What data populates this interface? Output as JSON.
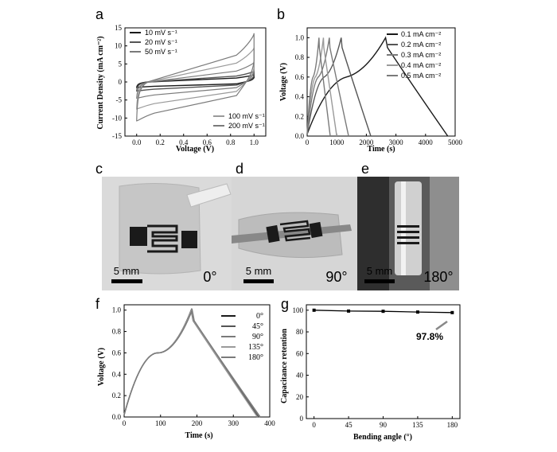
{
  "panels": {
    "a": "a",
    "b": "b",
    "c": "c",
    "d": "d",
    "e": "e",
    "f": "f",
    "g": "g"
  },
  "photos": {
    "c": {
      "scale": "5 mm",
      "angle": "0°"
    },
    "d": {
      "scale": "5 mm",
      "angle": "90°"
    },
    "e": {
      "scale": "5 mm",
      "angle": "180°"
    }
  },
  "colors": {
    "dark": "#1a1a1a",
    "mid": "#555555",
    "grey": "#7a7a7a",
    "light": "#9a9a9a",
    "photo_bg": "#dcdcdc"
  },
  "chart_data": [
    {
      "id": "a",
      "type": "line",
      "xlabel": "Voltage (V)",
      "ylabel": "Current Density (mA cm⁻²)",
      "xlim": [
        -0.1,
        1.1
      ],
      "ylim": [
        -15,
        15
      ],
      "xticks": [
        "0.0",
        "0.2",
        "0.4",
        "0.6",
        "0.8",
        "1.0"
      ],
      "yticks": [
        "-15",
        "-10",
        "-5",
        "0",
        "5",
        "10",
        "15"
      ],
      "legend": [
        "10 mV s⁻¹",
        "20 mV s⁻¹",
        "50 mV s⁻¹",
        "100 mV s⁻¹",
        "200 mV s⁻¹"
      ],
      "series": [
        {
          "name": "10 mV s⁻¹",
          "upper_start": -1.0,
          "upper_end": 2.0,
          "lower_start": -1.5,
          "lower_end": 1.2
        },
        {
          "name": "20 mV s⁻¹",
          "upper_start": -1.5,
          "upper_end": 3.0,
          "lower_start": -2.5,
          "lower_end": 1.8
        },
        {
          "name": "50 mV s⁻¹",
          "upper_start": -3.0,
          "upper_end": 5.5,
          "lower_start": -4.5,
          "lower_end": 3.0
        },
        {
          "name": "100 mV s⁻¹",
          "upper_start": -4.5,
          "upper_end": 9.5,
          "lower_start": -7.5,
          "lower_end": 4.0
        },
        {
          "name": "200 mV s⁻¹",
          "upper_start": -6.0,
          "upper_end": 13.5,
          "lower_start": -10.8,
          "lower_end": 6.0
        }
      ]
    },
    {
      "id": "b",
      "type": "line",
      "xlabel": "Time (s)",
      "ylabel": "Voltage (V)",
      "xlim": [
        0,
        5000
      ],
      "ylim": [
        0,
        1.1
      ],
      "xticks": [
        "0",
        "1000",
        "2000",
        "3000",
        "4000",
        "5000"
      ],
      "yticks": [
        "0.0",
        "0.2",
        "0.4",
        "0.6",
        "0.8",
        "1.0"
      ],
      "legend": [
        "0.1 mA cm⁻²",
        "0.2 mA cm⁻²",
        "0.3 mA cm⁻²",
        "0.4 mA cm⁻²",
        "0.5 mA cm⁻²"
      ],
      "series": [
        {
          "name": "0.1 mA cm⁻²",
          "charge_end": 2650,
          "discharge_end": 4750
        },
        {
          "name": "0.2 mA cm⁻²",
          "charge_end": 1150,
          "discharge_end": 2150
        },
        {
          "name": "0.3 mA cm⁻²",
          "charge_end": 750,
          "discharge_end": 1400
        },
        {
          "name": "0.4 mA cm⁻²",
          "charge_end": 550,
          "discharge_end": 1000
        },
        {
          "name": "0.5 mA cm⁻²",
          "charge_end": 400,
          "discharge_end": 780
        }
      ]
    },
    {
      "id": "f",
      "type": "line",
      "xlabel": "Time (s)",
      "ylabel": "Voltage (V)",
      "xlim": [
        0,
        400
      ],
      "ylim": [
        0,
        1.05
      ],
      "xticks": [
        "0",
        "100",
        "200",
        "300",
        "400"
      ],
      "yticks": [
        "0.0",
        "0.2",
        "0.4",
        "0.6",
        "0.8",
        "1.0"
      ],
      "legend": [
        "0°",
        "45°",
        "90°",
        "135°",
        "180°"
      ],
      "series": [
        {
          "name": "0°",
          "charge_end": 185,
          "discharge_end": 370
        },
        {
          "name": "45°",
          "charge_end": 184,
          "discharge_end": 368
        },
        {
          "name": "90°",
          "charge_end": 186,
          "discharge_end": 372
        },
        {
          "name": "135°",
          "charge_end": 185,
          "discharge_end": 366
        },
        {
          "name": "180°",
          "charge_end": 187,
          "discharge_end": 374
        }
      ]
    },
    {
      "id": "g",
      "type": "line",
      "xlabel": "Bending angle (°)",
      "ylabel": "Capacitance retention",
      "xlim": [
        -10,
        190
      ],
      "ylim": [
        0,
        105
      ],
      "xticks": [
        "0",
        "45",
        "90",
        "135",
        "180"
      ],
      "yticks": [
        "0",
        "20",
        "40",
        "60",
        "80",
        "100"
      ],
      "x": [
        0,
        45,
        90,
        135,
        180
      ],
      "values": [
        100,
        99.2,
        99.0,
        98.3,
        97.8
      ],
      "annotation": "97.8%"
    }
  ]
}
